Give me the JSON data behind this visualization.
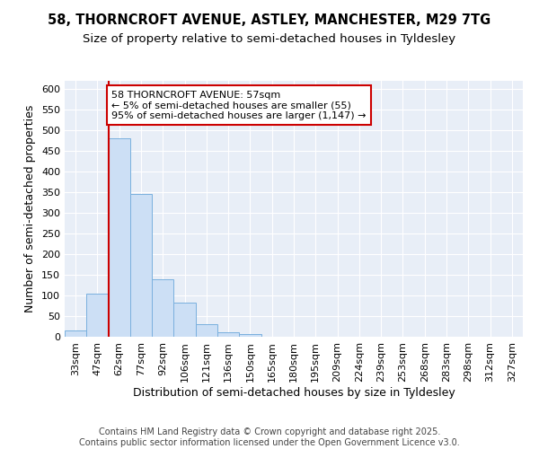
{
  "title_line1": "58, THORNCROFT AVENUE, ASTLEY, MANCHESTER, M29 7TG",
  "title_line2": "Size of property relative to semi-detached houses in Tyldesley",
  "xlabel": "Distribution of semi-detached houses by size in Tyldesley",
  "ylabel": "Number of semi-detached properties",
  "categories": [
    "33sqm",
    "47sqm",
    "62sqm",
    "77sqm",
    "92sqm",
    "106sqm",
    "121sqm",
    "136sqm",
    "150sqm",
    "165sqm",
    "180sqm",
    "195sqm",
    "209sqm",
    "224sqm",
    "239sqm",
    "253sqm",
    "268sqm",
    "283sqm",
    "298sqm",
    "312sqm",
    "327sqm"
  ],
  "values": [
    15,
    105,
    480,
    345,
    140,
    83,
    30,
    10,
    6,
    1,
    1,
    1,
    1,
    1,
    1,
    1,
    1,
    1,
    1,
    1,
    1
  ],
  "bar_color": "#ccdff5",
  "bar_edge_color": "#7ab0de",
  "background_color": "#e8eef7",
  "grid_color": "#ffffff",
  "annotation_text": "58 THORNCROFT AVENUE: 57sqm\n← 5% of semi-detached houses are smaller (55)\n95% of semi-detached houses are larger (1,147) →",
  "vline_x_index": 2,
  "vline_color": "#cc0000",
  "box_edge_color": "#cc0000",
  "ylim": [
    0,
    620
  ],
  "yticks": [
    0,
    50,
    100,
    150,
    200,
    250,
    300,
    350,
    400,
    450,
    500,
    550,
    600
  ],
  "footer_text": "Contains HM Land Registry data © Crown copyright and database right 2025.\nContains public sector information licensed under the Open Government Licence v3.0.",
  "title_fontsize": 10.5,
  "subtitle_fontsize": 9.5,
  "axis_label_fontsize": 9,
  "tick_fontsize": 8,
  "footer_fontsize": 7,
  "annotation_fontsize": 8
}
